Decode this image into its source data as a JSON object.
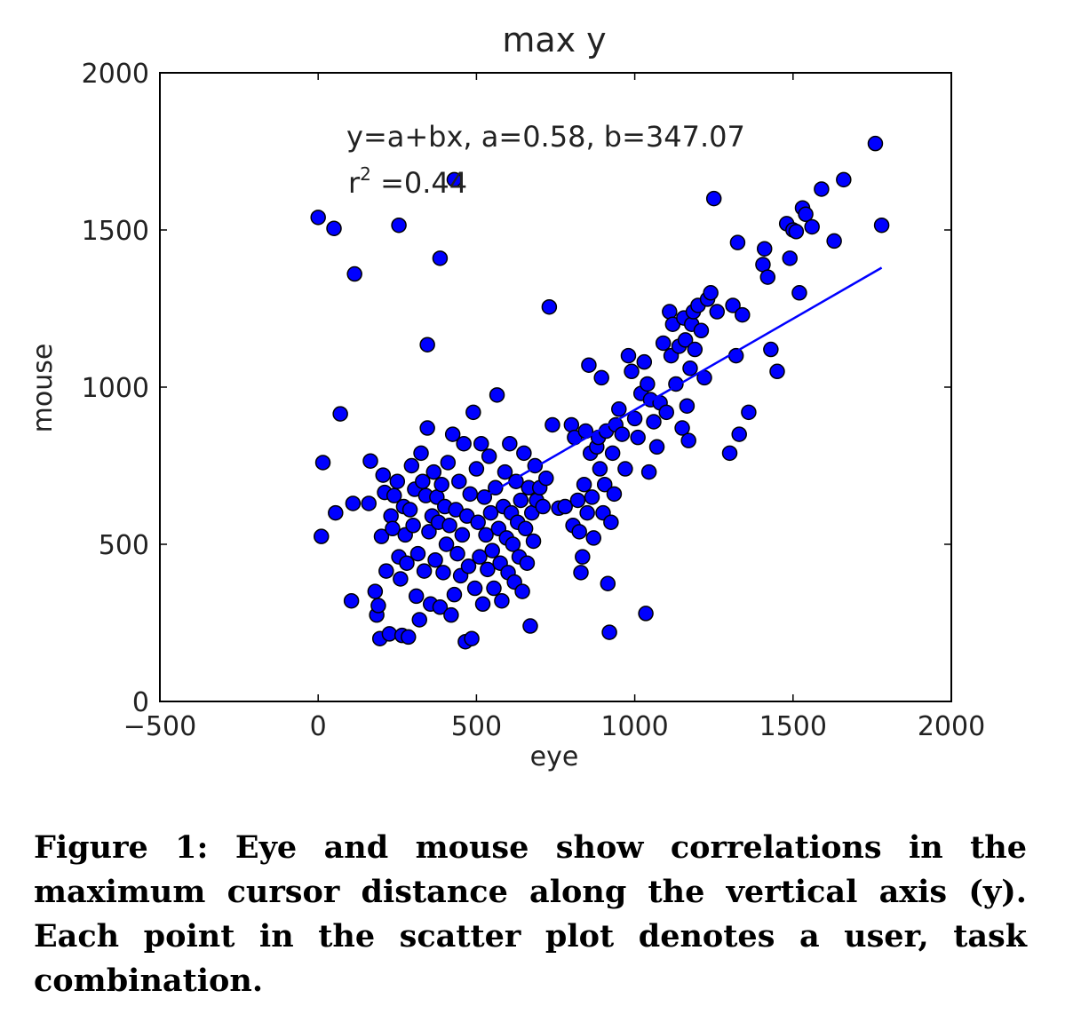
{
  "chart_data": {
    "type": "scatter",
    "title": "max y",
    "xlabel": "eye",
    "ylabel": "mouse",
    "xlim": [
      -500,
      2000
    ],
    "ylim": [
      0,
      2000
    ],
    "xticks": [
      "−500",
      "0",
      "500",
      "1000",
      "1500",
      "2000"
    ],
    "yticks": [
      "0",
      "500",
      "1000",
      "1500",
      "2000"
    ],
    "grid": false,
    "colors": {
      "points": "#0000ff",
      "point_edge": "#000000",
      "fit_line": "#0000ff"
    },
    "annotation": {
      "equation": "y=a+bx, a=0.58, b=347.07",
      "r2_prefix": "r",
      "r2_sup": "2",
      "r2_value": " =0.44"
    },
    "fit_line": {
      "x": [
        530,
        1780
      ],
      "y": [
        655,
        1380
      ]
    },
    "points": [
      [
        0,
        1540
      ],
      [
        50,
        1505
      ],
      [
        255,
        1515
      ],
      [
        115,
        1360
      ],
      [
        385,
        1410
      ],
      [
        345,
        1135
      ],
      [
        430,
        1660
      ],
      [
        70,
        915
      ],
      [
        15,
        760
      ],
      [
        10,
        525
      ],
      [
        55,
        600
      ],
      [
        105,
        320
      ],
      [
        110,
        630
      ],
      [
        160,
        630
      ],
      [
        165,
        765
      ],
      [
        180,
        350
      ],
      [
        185,
        275
      ],
      [
        190,
        305
      ],
      [
        195,
        200
      ],
      [
        200,
        525
      ],
      [
        205,
        720
      ],
      [
        210,
        665
      ],
      [
        215,
        415
      ],
      [
        225,
        215
      ],
      [
        230,
        590
      ],
      [
        235,
        550
      ],
      [
        240,
        655
      ],
      [
        250,
        700
      ],
      [
        255,
        460
      ],
      [
        260,
        390
      ],
      [
        265,
        210
      ],
      [
        270,
        620
      ],
      [
        275,
        530
      ],
      [
        280,
        440
      ],
      [
        285,
        205
      ],
      [
        290,
        610
      ],
      [
        295,
        750
      ],
      [
        300,
        560
      ],
      [
        305,
        675
      ],
      [
        310,
        335
      ],
      [
        315,
        470
      ],
      [
        320,
        260
      ],
      [
        325,
        790
      ],
      [
        330,
        700
      ],
      [
        335,
        415
      ],
      [
        340,
        655
      ],
      [
        345,
        870
      ],
      [
        350,
        540
      ],
      [
        355,
        310
      ],
      [
        360,
        590
      ],
      [
        365,
        730
      ],
      [
        370,
        450
      ],
      [
        375,
        650
      ],
      [
        380,
        570
      ],
      [
        385,
        300
      ],
      [
        390,
        690
      ],
      [
        395,
        410
      ],
      [
        400,
        620
      ],
      [
        405,
        500
      ],
      [
        410,
        760
      ],
      [
        415,
        560
      ],
      [
        420,
        275
      ],
      [
        425,
        850
      ],
      [
        430,
        340
      ],
      [
        435,
        610
      ],
      [
        440,
        470
      ],
      [
        445,
        700
      ],
      [
        450,
        400
      ],
      [
        455,
        530
      ],
      [
        460,
        820
      ],
      [
        465,
        190
      ],
      [
        470,
        590
      ],
      [
        475,
        430
      ],
      [
        480,
        660
      ],
      [
        485,
        200
      ],
      [
        490,
        920
      ],
      [
        495,
        360
      ],
      [
        500,
        740
      ],
      [
        505,
        570
      ],
      [
        510,
        460
      ],
      [
        515,
        820
      ],
      [
        520,
        310
      ],
      [
        525,
        650
      ],
      [
        530,
        530
      ],
      [
        535,
        420
      ],
      [
        540,
        780
      ],
      [
        545,
        600
      ],
      [
        550,
        480
      ],
      [
        555,
        360
      ],
      [
        560,
        680
      ],
      [
        565,
        975
      ],
      [
        570,
        550
      ],
      [
        575,
        440
      ],
      [
        580,
        320
      ],
      [
        585,
        620
      ],
      [
        590,
        730
      ],
      [
        595,
        520
      ],
      [
        600,
        410
      ],
      [
        605,
        820
      ],
      [
        610,
        600
      ],
      [
        615,
        500
      ],
      [
        620,
        380
      ],
      [
        625,
        700
      ],
      [
        630,
        570
      ],
      [
        635,
        460
      ],
      [
        640,
        640
      ],
      [
        645,
        350
      ],
      [
        650,
        790
      ],
      [
        655,
        550
      ],
      [
        660,
        440
      ],
      [
        665,
        680
      ],
      [
        670,
        240
      ],
      [
        675,
        600
      ],
      [
        680,
        510
      ],
      [
        685,
        750
      ],
      [
        690,
        640
      ],
      [
        700,
        680
      ],
      [
        710,
        620
      ],
      [
        720,
        710
      ],
      [
        730,
        1255
      ],
      [
        740,
        880
      ],
      [
        760,
        615
      ],
      [
        780,
        620
      ],
      [
        800,
        880
      ],
      [
        805,
        560
      ],
      [
        810,
        840
      ],
      [
        820,
        640
      ],
      [
        825,
        540
      ],
      [
        830,
        410
      ],
      [
        835,
        460
      ],
      [
        840,
        690
      ],
      [
        845,
        860
      ],
      [
        850,
        600
      ],
      [
        855,
        1070
      ],
      [
        860,
        790
      ],
      [
        865,
        650
      ],
      [
        870,
        520
      ],
      [
        880,
        810
      ],
      [
        885,
        840
      ],
      [
        890,
        740
      ],
      [
        895,
        1030
      ],
      [
        900,
        600
      ],
      [
        905,
        690
      ],
      [
        910,
        860
      ],
      [
        915,
        375
      ],
      [
        920,
        220
      ],
      [
        925,
        570
      ],
      [
        930,
        790
      ],
      [
        935,
        660
      ],
      [
        940,
        880
      ],
      [
        950,
        930
      ],
      [
        960,
        850
      ],
      [
        970,
        740
      ],
      [
        980,
        1100
      ],
      [
        990,
        1050
      ],
      [
        1000,
        900
      ],
      [
        1010,
        840
      ],
      [
        1020,
        980
      ],
      [
        1030,
        1080
      ],
      [
        1035,
        280
      ],
      [
        1040,
        1010
      ],
      [
        1045,
        730
      ],
      [
        1050,
        960
      ],
      [
        1060,
        890
      ],
      [
        1070,
        810
      ],
      [
        1080,
        950
      ],
      [
        1090,
        1140
      ],
      [
        1100,
        920
      ],
      [
        1110,
        1240
      ],
      [
        1115,
        1100
      ],
      [
        1120,
        1200
      ],
      [
        1130,
        1010
      ],
      [
        1140,
        1130
      ],
      [
        1150,
        870
      ],
      [
        1155,
        1220
      ],
      [
        1160,
        1150
      ],
      [
        1165,
        940
      ],
      [
        1170,
        830
      ],
      [
        1175,
        1060
      ],
      [
        1180,
        1200
      ],
      [
        1185,
        1240
      ],
      [
        1190,
        1120
      ],
      [
        1200,
        1260
      ],
      [
        1210,
        1180
      ],
      [
        1220,
        1030
      ],
      [
        1230,
        1280
      ],
      [
        1240,
        1300
      ],
      [
        1250,
        1600
      ],
      [
        1260,
        1240
      ],
      [
        1300,
        790
      ],
      [
        1310,
        1260
      ],
      [
        1320,
        1100
      ],
      [
        1325,
        1460
      ],
      [
        1330,
        850
      ],
      [
        1340,
        1230
      ],
      [
        1360,
        920
      ],
      [
        1405,
        1390
      ],
      [
        1410,
        1440
      ],
      [
        1420,
        1350
      ],
      [
        1430,
        1120
      ],
      [
        1450,
        1050
      ],
      [
        1480,
        1520
      ],
      [
        1490,
        1410
      ],
      [
        1500,
        1500
      ],
      [
        1510,
        1495
      ],
      [
        1520,
        1300
      ],
      [
        1530,
        1570
      ],
      [
        1540,
        1550
      ],
      [
        1560,
        1510
      ],
      [
        1590,
        1630
      ],
      [
        1630,
        1465
      ],
      [
        1660,
        1660
      ],
      [
        1760,
        1775
      ],
      [
        1780,
        1515
      ]
    ]
  },
  "caption": {
    "label": "Figure 1:",
    "text": "Eye and mouse show correlations in the maximum cursor distance along the vertical axis (y). Each point in the scatter plot denotes a user, task combination."
  }
}
